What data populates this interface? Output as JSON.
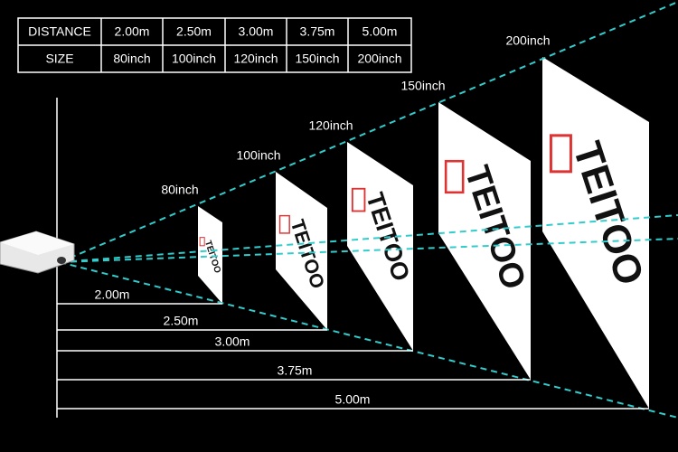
{
  "table": {
    "rows": [
      [
        "DISTANCE",
        "2.00m",
        "2.50m",
        "3.00m",
        "3.75m",
        "5.00m"
      ],
      [
        "SIZE",
        "80inch",
        "100inch",
        "120inch",
        "150inch",
        "200inch"
      ]
    ]
  },
  "screens": [
    {
      "label": "80inch"
    },
    {
      "label": "100inch"
    },
    {
      "label": "120inch"
    },
    {
      "label": "150inch"
    },
    {
      "label": "200inch"
    }
  ],
  "distances": [
    "2.00m",
    "2.50m",
    "3.00m",
    "3.75m",
    "5.00m"
  ],
  "brand": "TEITOO"
}
